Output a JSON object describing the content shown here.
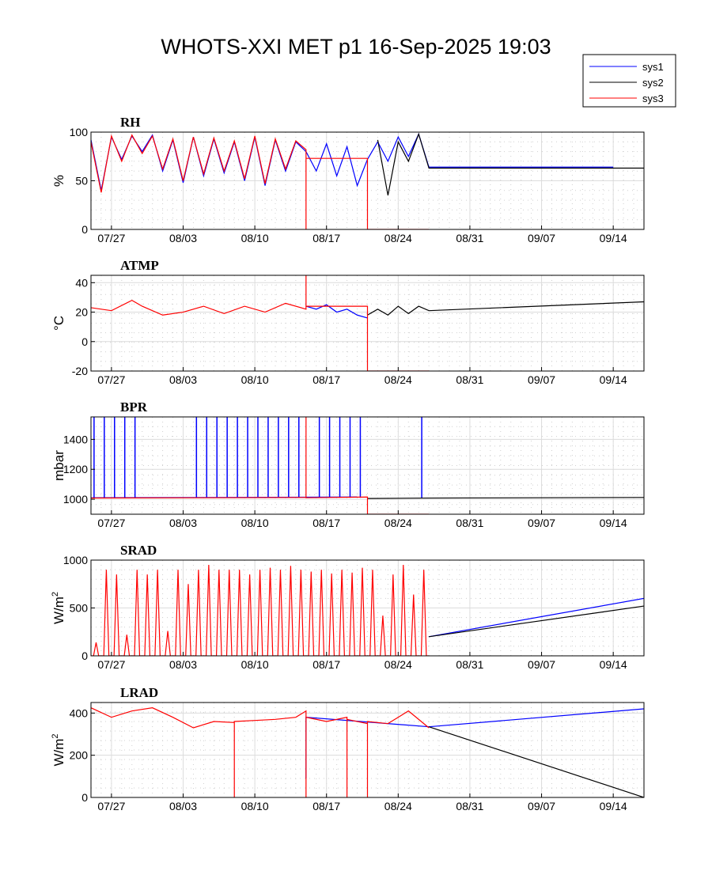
{
  "figure": {
    "title": "WHOTS-XXI MET p1 16-Sep-2025 19:03"
  },
  "legend": {
    "placement": "top-right",
    "entries": [
      {
        "name": "sys1",
        "color": "#0000ff"
      },
      {
        "name": "sys2",
        "color": "#000000"
      },
      {
        "name": "sys3",
        "color": "#ff0000"
      }
    ]
  },
  "chart_data": [
    {
      "type": "line",
      "title": "RH",
      "ylabel": "%",
      "xlim": [
        "2025-07-25",
        "2025-09-17"
      ],
      "ylim": [
        0,
        100
      ],
      "yticks": [
        0,
        50,
        100
      ],
      "xtick_labels": [
        "07/27",
        "08/03",
        "08/10",
        "08/17",
        "08/24",
        "08/31",
        "09/07",
        "09/14"
      ],
      "xtick_dates": [
        "2025-07-27",
        "2025-08-03",
        "2025-08-10",
        "2025-08-17",
        "2025-08-24",
        "2025-08-31",
        "2025-09-07",
        "2025-09-14"
      ],
      "grid": true,
      "series": [
        {
          "name": "sys1",
          "color": "#0000ff",
          "x": [
            "2025-07-25",
            "2025-07-26",
            "2025-07-27",
            "2025-07-28",
            "2025-07-29",
            "2025-07-30",
            "2025-07-31",
            "2025-08-01",
            "2025-08-02",
            "2025-08-03",
            "2025-08-04",
            "2025-08-05",
            "2025-08-06",
            "2025-08-07",
            "2025-08-08",
            "2025-08-09",
            "2025-08-10",
            "2025-08-11",
            "2025-08-12",
            "2025-08-13",
            "2025-08-14",
            "2025-08-15",
            "2025-08-16",
            "2025-08-17",
            "2025-08-18",
            "2025-08-19",
            "2025-08-20",
            "2025-08-21",
            "2025-08-22",
            "2025-08-23",
            "2025-08-24",
            "2025-08-25",
            "2025-08-26",
            "2025-08-27",
            "2025-09-14"
          ],
          "y": [
            92,
            40,
            95,
            72,
            96,
            80,
            97,
            60,
            92,
            48,
            95,
            55,
            93,
            58,
            90,
            50,
            95,
            45,
            92,
            60,
            90,
            80,
            60,
            88,
            55,
            85,
            45,
            72,
            90,
            70,
            95,
            75,
            98,
            64,
            64
          ]
        },
        {
          "name": "sys2",
          "color": "#000000",
          "x": [
            "2025-08-22",
            "2025-08-23",
            "2025-08-24",
            "2025-08-25",
            "2025-08-26",
            "2025-08-27",
            "2025-09-17"
          ],
          "y": [
            92,
            35,
            90,
            70,
            98,
            63,
            63
          ]
        },
        {
          "name": "sys3",
          "color": "#ff0000",
          "x": [
            "2025-07-25",
            "2025-07-26",
            "2025-07-27",
            "2025-07-28",
            "2025-07-29",
            "2025-07-30",
            "2025-07-31",
            "2025-08-01",
            "2025-08-02",
            "2025-08-03",
            "2025-08-04",
            "2025-08-05",
            "2025-08-06",
            "2025-08-07",
            "2025-08-08",
            "2025-08-09",
            "2025-08-10",
            "2025-08-11",
            "2025-08-12",
            "2025-08-13",
            "2025-08-14",
            "2025-08-15",
            "2025-08-15",
            "2025-08-15",
            "2025-08-21",
            "2025-08-21",
            "2025-08-27"
          ],
          "y": [
            90,
            38,
            96,
            70,
            97,
            78,
            96,
            62,
            93,
            50,
            95,
            57,
            94,
            60,
            91,
            52,
            96,
            47,
            93,
            62,
            91,
            82,
            0,
            73,
            73,
            0,
            0
          ]
        }
      ]
    },
    {
      "type": "line",
      "title": "ATMP",
      "ylabel": "°C",
      "xlim": [
        "2025-07-25",
        "2025-09-17"
      ],
      "ylim": [
        -20,
        45
      ],
      "yticks": [
        -20,
        0,
        20,
        40
      ],
      "xtick_labels": [
        "07/27",
        "08/03",
        "08/10",
        "08/17",
        "08/24",
        "08/31",
        "09/07",
        "09/14"
      ],
      "xtick_dates": [
        "2025-07-27",
        "2025-08-03",
        "2025-08-10",
        "2025-08-17",
        "2025-08-24",
        "2025-08-31",
        "2025-09-07",
        "2025-09-14"
      ],
      "grid": true,
      "series": [
        {
          "name": "sys1",
          "color": "#0000ff",
          "x": [
            "2025-08-15",
            "2025-08-16",
            "2025-08-17",
            "2025-08-18",
            "2025-08-19",
            "2025-08-20",
            "2025-08-21"
          ],
          "y": [
            24,
            22,
            25,
            20,
            22,
            18,
            16
          ]
        },
        {
          "name": "sys2",
          "color": "#000000",
          "x": [
            "2025-08-21",
            "2025-08-22",
            "2025-08-23",
            "2025-08-24",
            "2025-08-25",
            "2025-08-26",
            "2025-08-27",
            "2025-09-17"
          ],
          "y": [
            18,
            22,
            18,
            24,
            19,
            24,
            21,
            27
          ]
        },
        {
          "name": "sys3",
          "color": "#ff0000",
          "x": [
            "2025-07-25",
            "2025-07-27",
            "2025-07-29",
            "2025-07-30",
            "2025-08-01",
            "2025-08-03",
            "2025-08-05",
            "2025-08-07",
            "2025-08-09",
            "2025-08-11",
            "2025-08-13",
            "2025-08-15",
            "2025-08-15",
            "2025-08-15",
            "2025-08-21",
            "2025-08-21",
            "2025-08-27"
          ],
          "y": [
            23,
            21,
            28,
            24,
            18,
            20,
            24,
            19,
            24,
            20,
            26,
            22,
            45,
            24,
            24,
            -20,
            -20
          ]
        }
      ]
    },
    {
      "type": "line",
      "title": "BPR",
      "ylabel": "mbar",
      "xlim": [
        "2025-07-25",
        "2025-09-17"
      ],
      "ylim": [
        900,
        1550
      ],
      "yticks": [
        1000,
        1200,
        1400
      ],
      "xtick_labels": [
        "07/27",
        "08/03",
        "08/10",
        "08/17",
        "08/24",
        "08/31",
        "09/07",
        "09/14"
      ],
      "xtick_dates": [
        "2025-07-27",
        "2025-08-03",
        "2025-08-10",
        "2025-08-17",
        "2025-08-24",
        "2025-08-31",
        "2025-09-07",
        "2025-09-14"
      ],
      "grid": true,
      "series": [
        {
          "name": "sys1",
          "color": "#0000ff",
          "x": [
            "2025-07-25",
            "2025-08-20"
          ],
          "y": [
            1010,
            1015
          ],
          "spikes_to": 1550,
          "spike_dates": [
            "2025-07-25",
            "2025-07-26",
            "2025-07-27",
            "2025-07-28",
            "2025-07-29",
            "2025-08-04",
            "2025-08-05",
            "2025-08-06",
            "2025-08-07",
            "2025-08-08",
            "2025-08-09",
            "2025-08-10",
            "2025-08-11",
            "2025-08-12",
            "2025-08-13",
            "2025-08-14",
            "2025-08-16",
            "2025-08-17",
            "2025-08-18",
            "2025-08-19",
            "2025-08-20",
            "2025-08-26"
          ]
        },
        {
          "name": "sys2",
          "color": "#000000",
          "x": [
            "2025-08-21",
            "2025-08-27",
            "2025-09-17"
          ],
          "y": [
            1005,
            1008,
            1012
          ]
        },
        {
          "name": "sys3",
          "color": "#ff0000",
          "x": [
            "2025-07-25",
            "2025-08-15",
            "2025-08-15",
            "2025-08-15",
            "2025-08-21",
            "2025-08-21",
            "2025-08-27"
          ],
          "y": [
            1008,
            1012,
            1550,
            1010,
            1015,
            900,
            900
          ]
        }
      ]
    },
    {
      "type": "line",
      "title": "SRAD",
      "ylabel": "W/m",
      "ylabel_sup": "2",
      "xlim": [
        "2025-07-25",
        "2025-09-17"
      ],
      "ylim": [
        0,
        1000
      ],
      "yticks": [
        0,
        500,
        1000
      ],
      "xtick_labels": [
        "07/27",
        "08/03",
        "08/10",
        "08/17",
        "08/24",
        "08/31",
        "09/07",
        "09/14"
      ],
      "xtick_dates": [
        "2025-07-27",
        "2025-08-03",
        "2025-08-10",
        "2025-08-17",
        "2025-08-24",
        "2025-08-31",
        "2025-09-07",
        "2025-09-14"
      ],
      "grid": true,
      "daily_peaks": [
        140,
        900,
        850,
        220,
        900,
        850,
        900,
        260,
        900,
        750,
        900,
        950,
        900,
        900,
        900,
        850,
        900,
        920,
        900,
        940,
        900,
        880,
        900,
        860,
        900,
        870,
        920,
        900,
        420,
        850,
        950,
        640,
        900,
        880
      ],
      "series": [
        {
          "name": "sys1",
          "color": "#0000ff",
          "x": [
            "2025-08-27",
            "2025-09-17"
          ],
          "y": [
            200,
            600
          ]
        },
        {
          "name": "sys2",
          "color": "#000000",
          "x": [
            "2025-08-27",
            "2025-09-17"
          ],
          "y": [
            200,
            520
          ]
        },
        {
          "name": "sys3",
          "color": "#ff0000",
          "x": [
            "2025-07-25",
            "2025-08-27"
          ],
          "y": [
            0,
            0
          ],
          "diurnal": true
        }
      ]
    },
    {
      "type": "line",
      "title": "LRAD",
      "ylabel": "W/m",
      "ylabel_sup": "2",
      "xlim": [
        "2025-07-25",
        "2025-09-17"
      ],
      "ylim": [
        0,
        450
      ],
      "yticks": [
        0,
        200,
        400
      ],
      "xtick_labels": [
        "07/27",
        "08/03",
        "08/10",
        "08/17",
        "08/24",
        "08/31",
        "09/07",
        "09/14"
      ],
      "xtick_dates": [
        "2025-07-27",
        "2025-08-03",
        "2025-08-10",
        "2025-08-17",
        "2025-08-24",
        "2025-08-31",
        "2025-09-07",
        "2025-09-14"
      ],
      "grid": true,
      "series": [
        {
          "name": "sys1",
          "color": "#0000ff",
          "x": [
            "2025-08-15",
            "2025-08-15",
            "2025-08-15",
            "2025-08-27",
            "2025-09-17"
          ],
          "y": [
            380,
            90,
            380,
            335,
            420
          ]
        },
        {
          "name": "sys2",
          "color": "#000000",
          "x": [
            "2025-08-27",
            "2025-09-17"
          ],
          "y": [
            335,
            0
          ]
        },
        {
          "name": "sys3",
          "color": "#ff0000",
          "x": [
            "2025-07-25",
            "2025-07-27",
            "2025-07-29",
            "2025-07-31",
            "2025-08-02",
            "2025-08-04",
            "2025-08-06",
            "2025-08-08",
            "2025-08-08",
            "2025-08-08",
            "2025-08-10",
            "2025-08-12",
            "2025-08-14",
            "2025-08-15",
            "2025-08-15",
            "2025-08-15",
            "2025-08-17",
            "2025-08-19",
            "2025-08-19",
            "2025-08-19",
            "2025-08-21",
            "2025-08-21",
            "2025-08-21",
            "2025-08-23",
            "2025-08-25",
            "2025-08-27"
          ],
          "y": [
            425,
            380,
            410,
            425,
            380,
            330,
            360,
            355,
            0,
            360,
            365,
            370,
            380,
            410,
            0,
            380,
            360,
            380,
            0,
            370,
            350,
            0,
            360,
            350,
            410,
            330
          ]
        }
      ]
    }
  ]
}
